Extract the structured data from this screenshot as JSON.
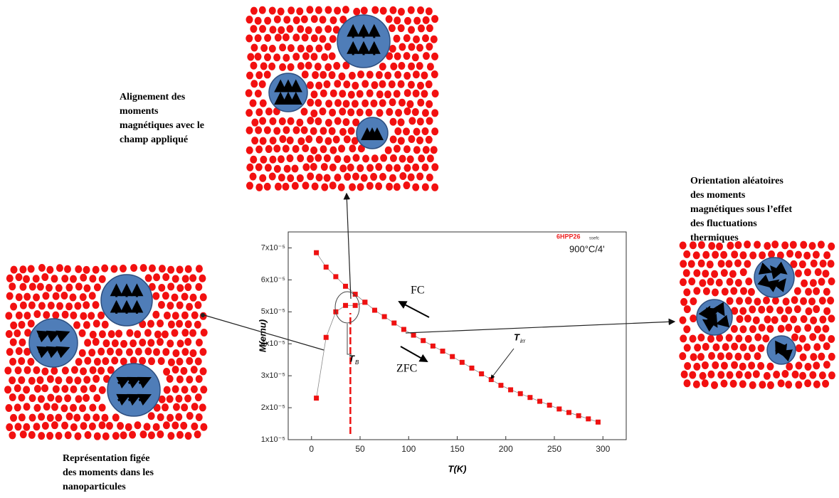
{
  "chart_data": {
    "type": "scatter",
    "xlabel": "T(K)",
    "ylabel": "M(emu)",
    "x": [
      5,
      15,
      25,
      35,
      45,
      55,
      65,
      75,
      85,
      95,
      105,
      115,
      125,
      135,
      145,
      155,
      165,
      175,
      185,
      195,
      205,
      215,
      225,
      235,
      245,
      255,
      265,
      275,
      285,
      295
    ],
    "series": [
      {
        "name": "FC",
        "color": "#ee1111",
        "values": [
          6.85e-05,
          6.4e-05,
          6.1e-05,
          5.8e-05,
          5.55e-05,
          5.3e-05,
          5.05e-05,
          4.85e-05,
          4.65e-05,
          4.45e-05,
          4.27e-05,
          4.1e-05,
          3.93e-05,
          3.77e-05,
          3.6e-05,
          3.42e-05,
          3.24e-05,
          3.06e-05,
          2.88e-05,
          2.7e-05,
          2.56e-05,
          2.44e-05,
          2.32e-05,
          2.2e-05,
          2.08e-05,
          1.96e-05,
          1.85e-05,
          1.75e-05,
          1.65e-05,
          1.55e-05
        ]
      },
      {
        "name": "ZFC",
        "color": "#ee1111",
        "values": [
          2.3e-05,
          4.2e-05,
          5e-05,
          5.2e-05,
          5.2e-05,
          5.3e-05,
          null,
          null,
          null,
          null,
          null,
          null,
          null,
          null,
          null,
          null,
          null,
          null,
          null,
          null,
          null,
          null,
          null,
          null,
          null,
          null,
          null,
          null,
          null,
          null
        ]
      }
    ],
    "xlim": [
      -24,
      324
    ],
    "ylim": [
      1e-05,
      7.5e-05
    ],
    "xticks": [
      0,
      50,
      100,
      150,
      200,
      250,
      300
    ],
    "yticks": [
      {
        "value": 1e-05,
        "label": "1x10⁻⁵"
      },
      {
        "value": 2e-05,
        "label": "2x10⁻⁵"
      },
      {
        "value": 3e-05,
        "label": "3x10⁻⁵"
      },
      {
        "value": 4e-05,
        "label": "4x10⁻⁵"
      },
      {
        "value": 5e-05,
        "label": "5x10⁻⁵"
      },
      {
        "value": 6e-05,
        "label": "6x10⁻⁵"
      },
      {
        "value": 7e-05,
        "label": "7x10⁻⁵"
      }
    ],
    "blocking_line": 40,
    "annotations": {
      "sample": "6HPP26",
      "sample_suffix": "ssefc",
      "treatment": "900°C/4'",
      "fc": "FC",
      "zfc": "ZFC",
      "tirr": "T",
      "tirr_sub": "irr",
      "tb": "T",
      "tb_sub": "B"
    }
  },
  "captions": [
    {
      "lines": [
        "Alignement des",
        "moments",
        "magnétiques avec le",
        "champ appliqué"
      ]
    },
    {
      "lines": [
        "Orientation aléatoires",
        "des moments",
        "magnétiques sous l’effet",
        "des fluctuations",
        "thermiques"
      ]
    },
    {
      "lines": [
        "Représentation figée",
        "des moments dans les",
        "nanoparticules"
      ]
    }
  ]
}
